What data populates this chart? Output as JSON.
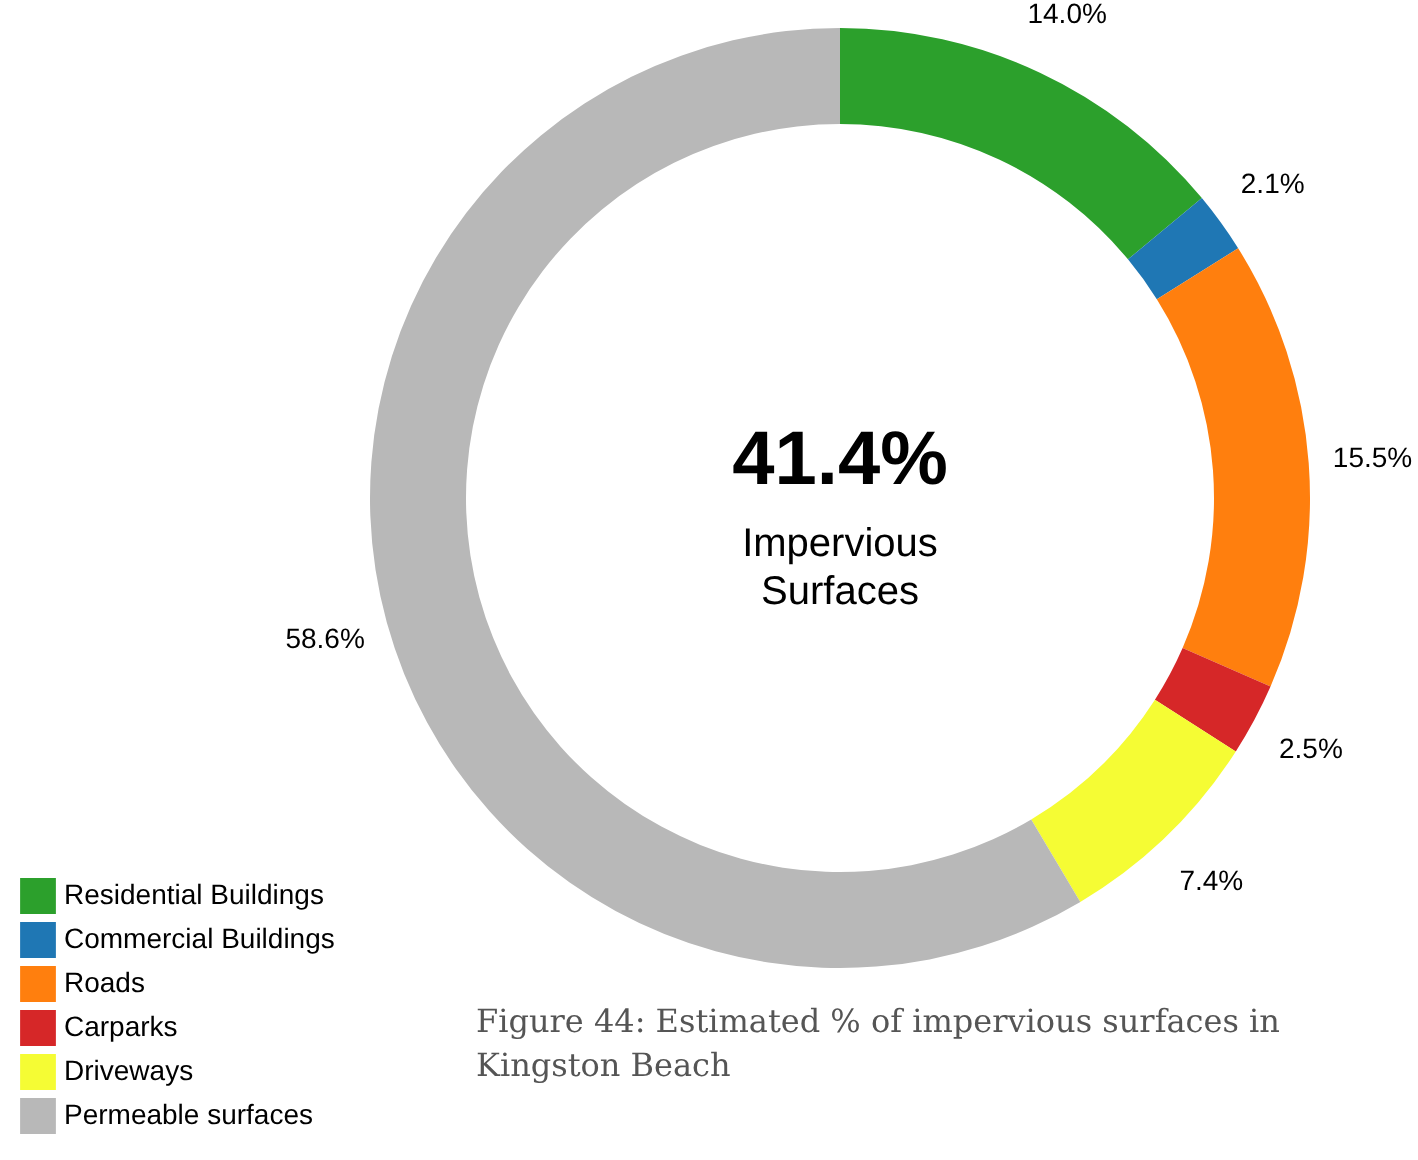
{
  "chart_data": {
    "type": "donut",
    "categories": [
      "Residential Buildings",
      "Commercial Buildings",
      "Roads",
      "Carparks",
      "Driveways",
      "Permeable surfaces"
    ],
    "values": [
      14.0,
      2.1,
      15.5,
      2.5,
      7.4,
      58.6
    ],
    "colors": [
      "#2ca02c",
      "#1f77b4",
      "#ff7f0e",
      "#d62728",
      "#f5fc34",
      "#b8b8b8"
    ],
    "value_labels": [
      "14.0%",
      "2.1%",
      "15.5%",
      "2.5%",
      "7.4%",
      "58.6%"
    ],
    "annotations": [
      "41.4%",
      "Impervious Surfaces",
      "Figure 44: Estimated % of impervious surfaces in Kingston Beach"
    ],
    "legend": "bottom left"
  }
}
